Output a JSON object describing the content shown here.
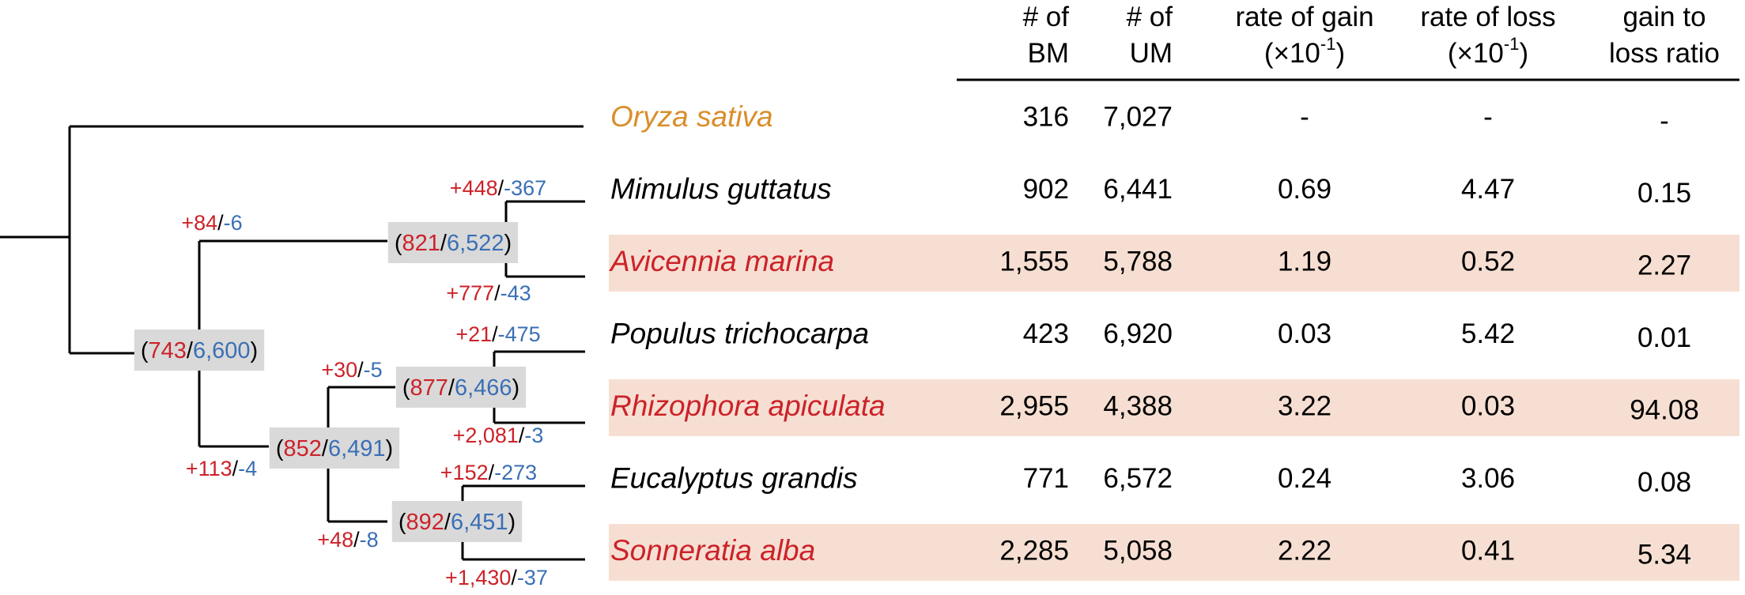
{
  "tree": {
    "nodes": [
      {
        "label": [
          "(",
          "743",
          "/",
          "6,600",
          ")"
        ]
      },
      {
        "label": [
          "(",
          "821",
          "/",
          "6,522",
          ")"
        ]
      },
      {
        "label": [
          "(",
          "852",
          "/",
          "6,491",
          ")"
        ]
      },
      {
        "label": [
          "(",
          "877",
          "/",
          "6,466",
          ")"
        ]
      },
      {
        "label": [
          "(",
          "892",
          "/",
          "6,451",
          ")"
        ]
      }
    ],
    "branches": [
      {
        "label": [
          "+84",
          "/",
          "-6"
        ]
      },
      {
        "label": [
          "+448",
          "/",
          "-367"
        ]
      },
      {
        "label": [
          "+777",
          "/",
          "-43"
        ]
      },
      {
        "label": [
          "+21",
          "/",
          "-475"
        ]
      },
      {
        "label": [
          "+30",
          "/",
          "-5"
        ]
      },
      {
        "label": [
          "+2,081",
          "/",
          "-3"
        ]
      },
      {
        "label": [
          "+113",
          "/",
          "-4"
        ]
      },
      {
        "label": [
          "+152",
          "/",
          "-273"
        ]
      },
      {
        "label": [
          "+48",
          "/",
          "-8"
        ]
      },
      {
        "label": [
          "+1,430",
          "/",
          "-37"
        ]
      }
    ]
  },
  "table": {
    "columns": [
      {
        "lines": [
          [
            "# of"
          ],
          [
            "BM"
          ]
        ]
      },
      {
        "lines": [
          [
            "# of"
          ],
          [
            "UM"
          ]
        ]
      },
      {
        "lines": [
          [
            "rate of gain"
          ],
          [
            "(×10",
            "-1",
            ")"
          ]
        ]
      },
      {
        "lines": [
          [
            "rate of loss"
          ],
          [
            "(×10",
            "-1",
            ")"
          ]
        ]
      },
      {
        "lines": [
          [
            "gain to"
          ],
          [
            "loss ratio"
          ]
        ]
      }
    ],
    "rows": [
      {
        "species": "Oryza sativa",
        "color": "#d98e2b",
        "highlight": false,
        "bm": "316",
        "um": "7,027",
        "gain": "-",
        "loss": "-",
        "ratio": "-"
      },
      {
        "species": "Mimulus guttatus",
        "color": "#000000",
        "highlight": false,
        "bm": "902",
        "um": "6,441",
        "gain": "0.69",
        "loss": "4.47",
        "ratio": "0.15"
      },
      {
        "species": "Avicennia marina",
        "color": "#cc2229",
        "highlight": true,
        "bm": "1,555",
        "um": "5,788",
        "gain": "1.19",
        "loss": "0.52",
        "ratio": "2.27"
      },
      {
        "species": "Populus trichocarpa",
        "color": "#000000",
        "highlight": false,
        "bm": "423",
        "um": "6,920",
        "gain": "0.03",
        "loss": "5.42",
        "ratio": "0.01"
      },
      {
        "species": "Rhizophora apiculata",
        "color": "#cc2229",
        "highlight": true,
        "bm": "2,955",
        "um": "4,388",
        "gain": "3.22",
        "loss": "0.03",
        "ratio": "94.08"
      },
      {
        "species": "Eucalyptus grandis",
        "color": "#000000",
        "highlight": false,
        "bm": "771",
        "um": "6,572",
        "gain": "0.24",
        "loss": "3.06",
        "ratio": "0.08"
      },
      {
        "species": "Sonneratia alba",
        "color": "#cc2229",
        "highlight": true,
        "bm": "2,285",
        "um": "5,058",
        "gain": "2.22",
        "loss": "0.41",
        "ratio": "5.34"
      }
    ]
  }
}
